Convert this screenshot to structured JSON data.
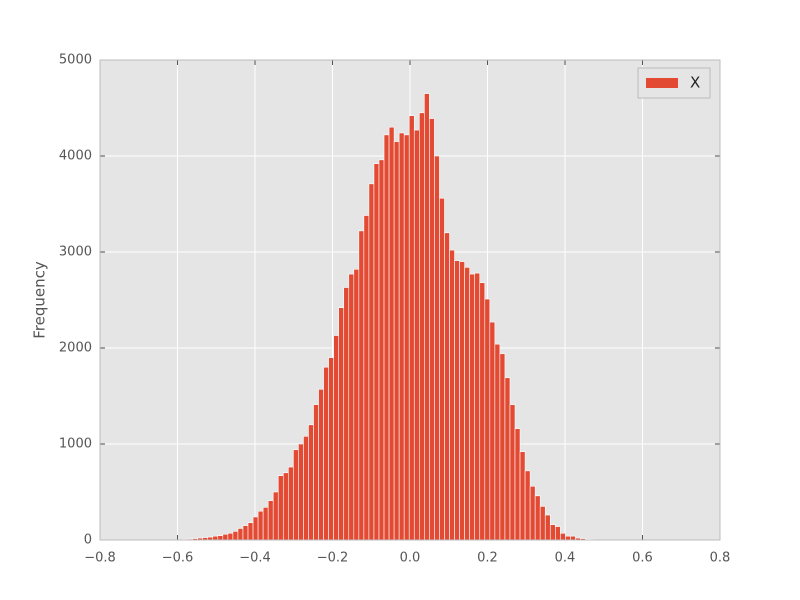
{
  "chart_data": {
    "type": "histogram",
    "ylabel": "Frequency",
    "series": [
      {
        "name": "X",
        "color": "#e24a33",
        "bins": [
          -0.6,
          -0.587,
          -0.574,
          -0.561,
          -0.548,
          -0.535,
          -0.522,
          -0.509,
          -0.496,
          -0.483,
          -0.47,
          -0.457,
          -0.444,
          -0.431,
          -0.418,
          -0.405,
          -0.392,
          -0.379,
          -0.366,
          -0.353,
          -0.34,
          -0.327,
          -0.314,
          -0.301,
          -0.288,
          -0.275,
          -0.262,
          -0.249,
          -0.236,
          -0.223,
          -0.21,
          -0.197,
          -0.184,
          -0.171,
          -0.158,
          -0.145,
          -0.132,
          -0.119,
          -0.106,
          -0.093,
          -0.08,
          -0.067,
          -0.054,
          -0.041,
          -0.028,
          -0.015,
          -0.002,
          0.011,
          0.024,
          0.037,
          0.05,
          0.063,
          0.076,
          0.089,
          0.102,
          0.115,
          0.128,
          0.141,
          0.154,
          0.167,
          0.18,
          0.193,
          0.206,
          0.219,
          0.232,
          0.245,
          0.258,
          0.271,
          0.284,
          0.297,
          0.31,
          0.323,
          0.336,
          0.349,
          0.362,
          0.375,
          0.388,
          0.401,
          0.414,
          0.427,
          0.44,
          0.453,
          0.466,
          0.479
        ],
        "values": [
          3,
          5,
          10,
          15,
          20,
          25,
          30,
          40,
          45,
          60,
          70,
          90,
          120,
          150,
          180,
          240,
          300,
          340,
          410,
          500,
          670,
          700,
          760,
          940,
          1000,
          1080,
          1200,
          1410,
          1570,
          1800,
          1900,
          2130,
          2420,
          2630,
          2770,
          2820,
          3220,
          3380,
          3710,
          3920,
          3960,
          4220,
          4300,
          4150,
          4240,
          4220,
          4420,
          4270,
          4450,
          4650,
          4390,
          4000,
          3560,
          3200,
          3020,
          2910,
          2900,
          2840,
          2770,
          2780,
          2680,
          2510,
          2270,
          2040,
          1940,
          1690,
          1410,
          1160,
          920,
          720,
          560,
          460,
          350,
          260,
          160,
          140,
          70,
          40,
          40,
          20,
          15,
          8,
          4
        ]
      }
    ],
    "xlim": [
      -0.8,
      0.8
    ],
    "xticks": [
      {
        "value": -0.8,
        "label": "−0.8"
      },
      {
        "value": -0.6,
        "label": "−0.6"
      },
      {
        "value": -0.4,
        "label": "−0.4"
      },
      {
        "value": -0.2,
        "label": "−0.2"
      },
      {
        "value": 0,
        "label": "0.0"
      },
      {
        "value": 0.2,
        "label": "0.2"
      },
      {
        "value": 0.4,
        "label": "0.4"
      },
      {
        "value": 0.6,
        "label": "0.6"
      },
      {
        "value": 0.8,
        "label": "0.8"
      }
    ],
    "ylim": [
      0,
      5000
    ],
    "yticks": [
      0,
      1000,
      2000,
      3000,
      4000,
      5000
    ],
    "grid": true,
    "legend": "upper right"
  }
}
